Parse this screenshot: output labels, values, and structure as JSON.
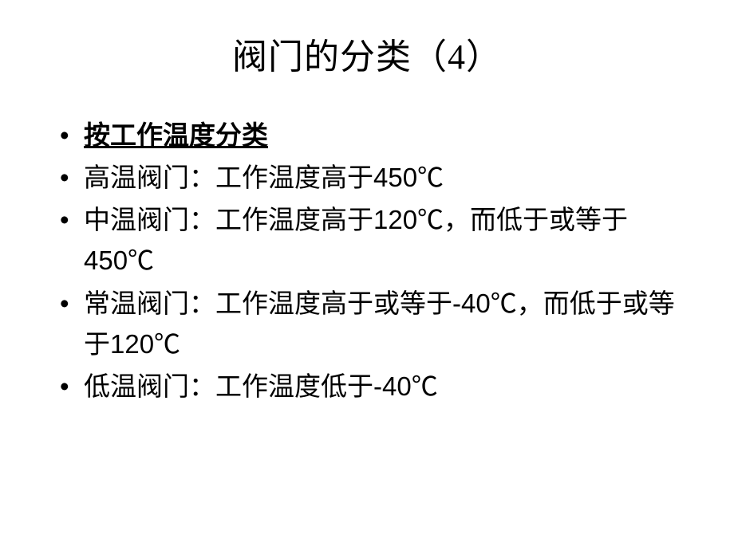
{
  "slide": {
    "title": "阀门的分类（4）",
    "subtitle": "按工作温度分类",
    "items": [
      "高温阀门：工作温度高于450℃",
      "中温阀门：工作温度高于120℃，而低于或等于450℃",
      "常温阀门：工作温度高于或等于-40℃，而低于或等于120℃",
      "低温阀门：工作温度低于-40℃"
    ],
    "colors": {
      "background": "#ffffff",
      "text": "#000000"
    },
    "typography": {
      "title_fontsize": 44,
      "body_fontsize": 33,
      "font_family": "SimSun"
    }
  }
}
